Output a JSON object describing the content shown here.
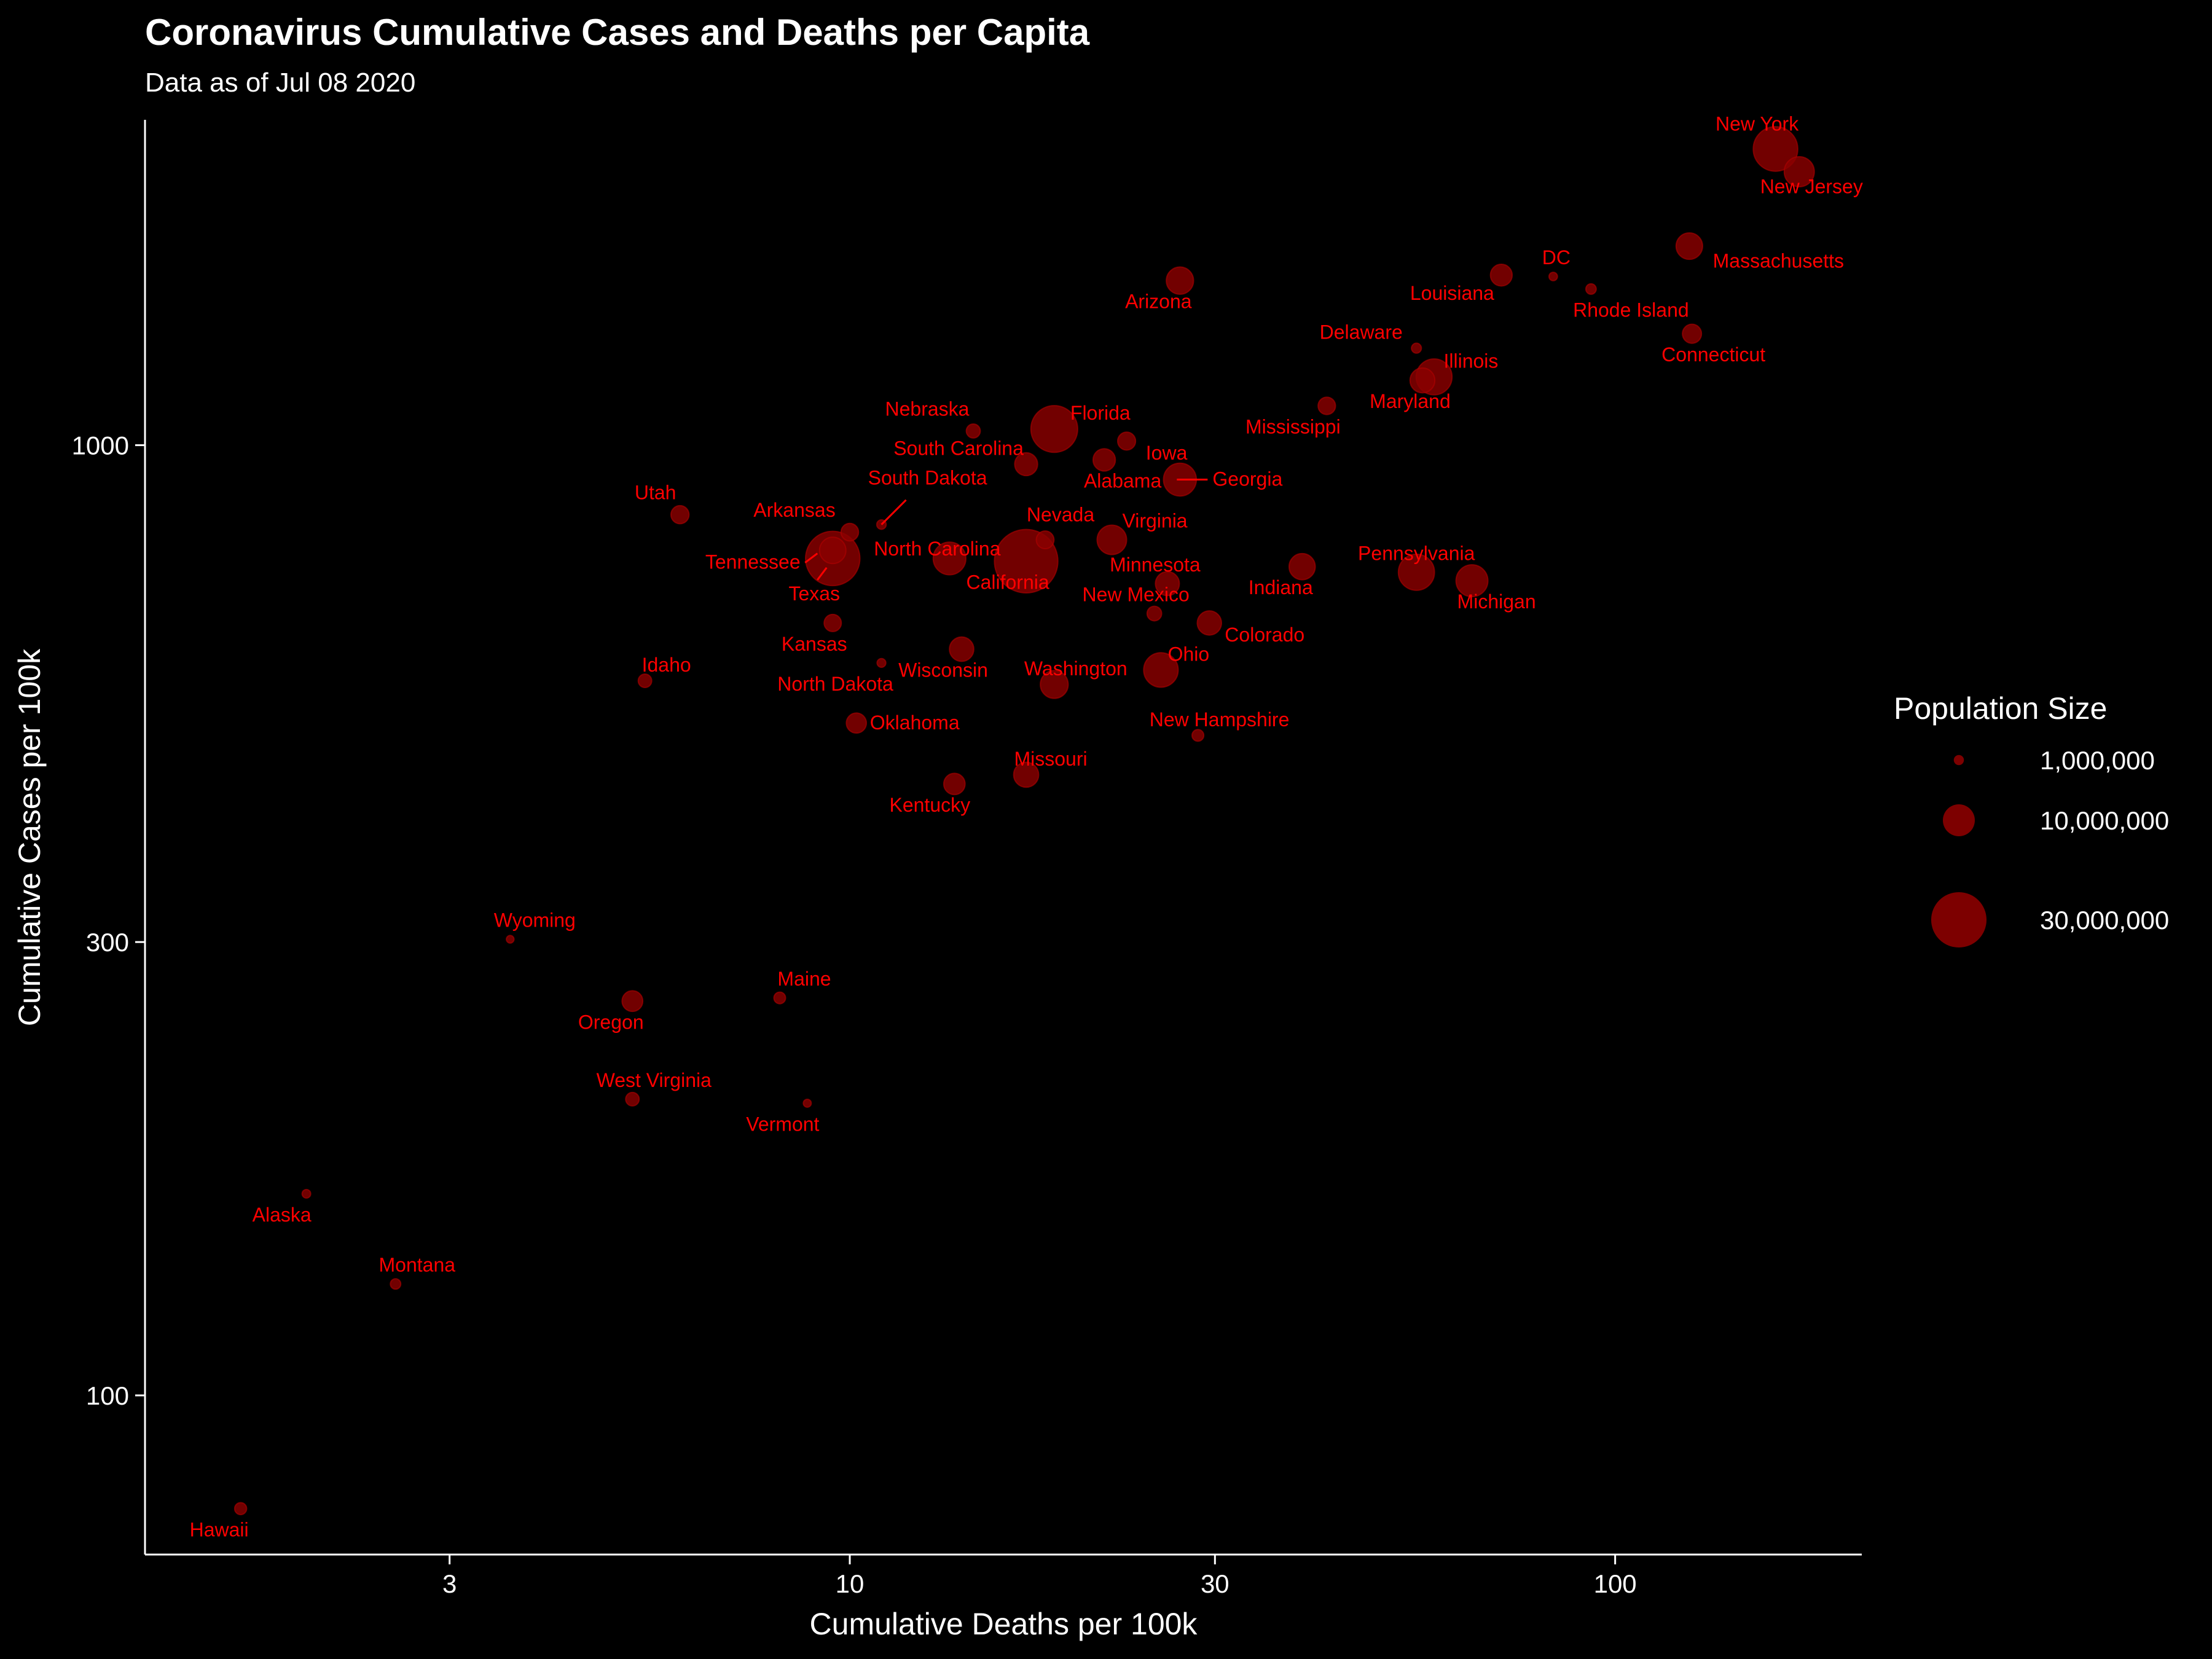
{
  "chart_data": {
    "type": "scatter",
    "title": "Coronavirus Cumulative Cases and Deaths per Capita",
    "subtitle": "Data as of Jul 08 2020",
    "xlabel": "Cumulative Deaths per 100k",
    "ylabel": "Cumulative Cases per 100k",
    "xscale": "log",
    "yscale": "log",
    "xlim": [
      1.2,
      210
    ],
    "ylim": [
      68,
      2200
    ],
    "xticks": [
      3,
      10,
      30,
      100
    ],
    "xtick_labels": [
      "3",
      "10",
      "30",
      "100"
    ],
    "yticks": [
      100,
      300,
      1000
    ],
    "ytick_labels": [
      "100",
      "300",
      "1000"
    ],
    "grid": false,
    "point_color": "#8B0000",
    "label_color": "#FF0000",
    "legend": {
      "title": "Population Size",
      "placement": "right",
      "entries": [
        {
          "label": "1,000,000",
          "population": 1000000
        },
        {
          "label": "10,000,000",
          "population": 10000000
        },
        {
          "label": "30,000,000",
          "population": 30000000
        }
      ]
    },
    "points": [
      {
        "name": "New York",
        "x": 162,
        "y": 2050,
        "pop": 19450000
      },
      {
        "name": "New Jersey",
        "x": 174,
        "y": 1940,
        "pop": 8880000
      },
      {
        "name": "Massachusetts",
        "x": 125,
        "y": 1620,
        "pop": 6890000
      },
      {
        "name": "DC",
        "x": 83,
        "y": 1505,
        "pop": 705000
      },
      {
        "name": "Louisiana",
        "x": 71,
        "y": 1510,
        "pop": 4650000
      },
      {
        "name": "Rhode Island",
        "x": 93,
        "y": 1460,
        "pop": 1060000
      },
      {
        "name": "Arizona",
        "x": 27,
        "y": 1490,
        "pop": 7280000
      },
      {
        "name": "Connecticut",
        "x": 126,
        "y": 1310,
        "pop": 3570000
      },
      {
        "name": "Delaware",
        "x": 55,
        "y": 1265,
        "pop": 973000
      },
      {
        "name": "Illinois",
        "x": 58,
        "y": 1180,
        "pop": 12670000
      },
      {
        "name": "Maryland",
        "x": 56,
        "y": 1170,
        "pop": 6050000
      },
      {
        "name": "Mississippi",
        "x": 42,
        "y": 1100,
        "pop": 2980000
      },
      {
        "name": "Nebraska",
        "x": 14.5,
        "y": 1035,
        "pop": 1930000
      },
      {
        "name": "Florida",
        "x": 18.5,
        "y": 1040,
        "pop": 21480000
      },
      {
        "name": "Iowa",
        "x": 23,
        "y": 1010,
        "pop": 3160000
      },
      {
        "name": "South Carolina",
        "x": 17,
        "y": 955,
        "pop": 5150000
      },
      {
        "name": "Alabama",
        "x": 21.5,
        "y": 965,
        "pop": 4900000
      },
      {
        "name": "Georgia",
        "x": 27,
        "y": 920,
        "pop": 10620000
      },
      {
        "name": "Utah",
        "x": 6,
        "y": 845,
        "pop": 3210000
      },
      {
        "name": "South Dakota",
        "x": 11,
        "y": 825,
        "pop": 885000
      },
      {
        "name": "Arkansas",
        "x": 10,
        "y": 810,
        "pop": 3020000
      },
      {
        "name": "Nevada",
        "x": 18,
        "y": 795,
        "pop": 3080000
      },
      {
        "name": "Virginia",
        "x": 22,
        "y": 795,
        "pop": 8540000
      },
      {
        "name": "Tennessee",
        "x": 9.5,
        "y": 775,
        "pop": 6830000
      },
      {
        "name": "Texas",
        "x": 9.5,
        "y": 760,
        "pop": 28990000
      },
      {
        "name": "North Carolina",
        "x": 13.5,
        "y": 760,
        "pop": 10490000
      },
      {
        "name": "California",
        "x": 17,
        "y": 755,
        "pop": 39510000
      },
      {
        "name": "Indiana",
        "x": 39,
        "y": 745,
        "pop": 6730000
      },
      {
        "name": "Pennsylvania",
        "x": 55,
        "y": 735,
        "pop": 12800000
      },
      {
        "name": "Michigan",
        "x": 65,
        "y": 720,
        "pop": 9990000
      },
      {
        "name": "Minnesota",
        "x": 26,
        "y": 715,
        "pop": 5640000
      },
      {
        "name": "New Mexico",
        "x": 25,
        "y": 665,
        "pop": 2100000
      },
      {
        "name": "Colorado",
        "x": 29.5,
        "y": 650,
        "pop": 5760000
      },
      {
        "name": "Kansas",
        "x": 9.5,
        "y": 650,
        "pop": 2910000
      },
      {
        "name": "Wisconsin",
        "x": 14,
        "y": 610,
        "pop": 5820000
      },
      {
        "name": "North Dakota",
        "x": 11,
        "y": 590,
        "pop": 762000
      },
      {
        "name": "Ohio",
        "x": 25.5,
        "y": 580,
        "pop": 11690000
      },
      {
        "name": "Idaho",
        "x": 5.4,
        "y": 565,
        "pop": 1790000
      },
      {
        "name": "Washington",
        "x": 18.5,
        "y": 560,
        "pop": 7610000
      },
      {
        "name": "Oklahoma",
        "x": 10.2,
        "y": 510,
        "pop": 3960000
      },
      {
        "name": "New Hampshire",
        "x": 28.5,
        "y": 495,
        "pop": 1360000
      },
      {
        "name": "Missouri",
        "x": 17,
        "y": 450,
        "pop": 6140000
      },
      {
        "name": "Kentucky",
        "x": 13.7,
        "y": 440,
        "pop": 4470000
      },
      {
        "name": "Wyoming",
        "x": 3.6,
        "y": 302,
        "pop": 578000
      },
      {
        "name": "Maine",
        "x": 8.1,
        "y": 262,
        "pop": 1340000
      },
      {
        "name": "Oregon",
        "x": 5.2,
        "y": 260,
        "pop": 4220000
      },
      {
        "name": "West Virginia",
        "x": 5.2,
        "y": 205,
        "pop": 1790000
      },
      {
        "name": "Vermont",
        "x": 8.8,
        "y": 203,
        "pop": 624000
      },
      {
        "name": "Alaska",
        "x": 1.95,
        "y": 163,
        "pop": 731000
      },
      {
        "name": "Montana",
        "x": 2.55,
        "y": 131,
        "pop": 1070000
      },
      {
        "name": "Hawaii",
        "x": 1.6,
        "y": 76,
        "pop": 1420000
      }
    ]
  }
}
